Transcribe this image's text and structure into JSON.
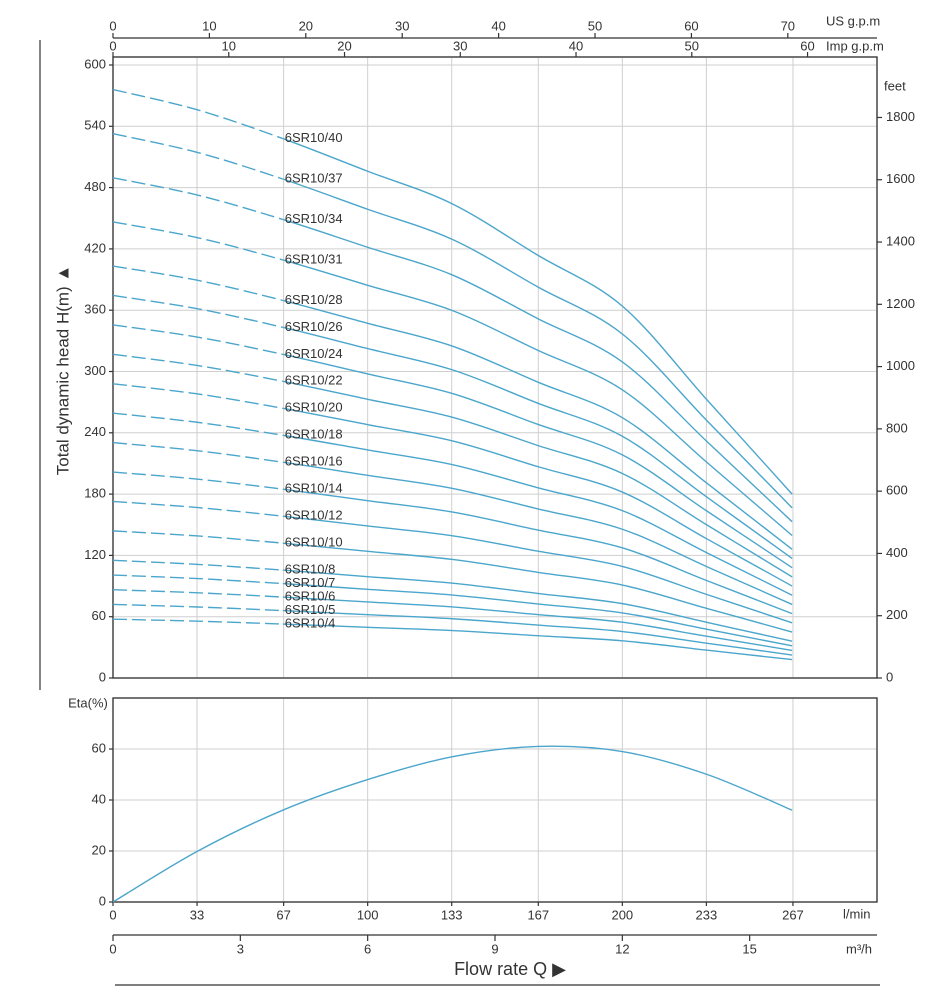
{
  "chart_data": [
    {
      "type": "line",
      "ylabel": "Total dynamic head H(m) ▲",
      "x": [
        0,
        2,
        4,
        6,
        8,
        10,
        12,
        14,
        16
      ],
      "xlim": [
        0,
        18
      ],
      "ylim": [
        0,
        600
      ],
      "yticks": [
        0,
        60,
        120,
        180,
        240,
        300,
        360,
        420,
        480,
        540,
        600
      ],
      "y2label": "feet",
      "y2lim": [
        0,
        1968.5
      ],
      "y2ticks": [
        0,
        200,
        400,
        600,
        800,
        1000,
        1200,
        1400,
        1600,
        1800
      ],
      "top_axes": [
        {
          "label": "US g.p.m",
          "xlim": [
            0,
            79.25
          ],
          "xticks": [
            0,
            10,
            20,
            30,
            40,
            50,
            60,
            70
          ]
        },
        {
          "label": "Imp g.p.m",
          "xlim": [
            0,
            66
          ],
          "xticks": [
            0,
            10,
            20,
            30,
            40,
            50,
            60
          ]
        }
      ],
      "dashed_xrange": [
        0,
        4
      ],
      "color": "#4ba6cc",
      "grid": true,
      "series": [
        {
          "name": "6SR10/40",
          "values": [
            576,
            556,
            528,
            496,
            464,
            414,
            364,
            272,
            180
          ]
        },
        {
          "name": "6SR10/37",
          "values": [
            532.8,
            514.3,
            488.4,
            458.8,
            429.2,
            383,
            336.7,
            251.6,
            166.5
          ]
        },
        {
          "name": "6SR10/34",
          "values": [
            489.6,
            472.6,
            448.8,
            421.6,
            394.4,
            351.9,
            309.4,
            231.2,
            153
          ]
        },
        {
          "name": "6SR10/31",
          "values": [
            446.4,
            430.9,
            409.2,
            384.4,
            359.6,
            320.9,
            282.1,
            210.8,
            139.5
          ]
        },
        {
          "name": "6SR10/28",
          "values": [
            403.2,
            389.2,
            369.6,
            347.2,
            324.8,
            289.8,
            254.8,
            190.4,
            126
          ]
        },
        {
          "name": "6SR10/26",
          "values": [
            374.4,
            361.4,
            343.2,
            322.4,
            301.6,
            269.1,
            236.6,
            176.8,
            117
          ]
        },
        {
          "name": "6SR10/24",
          "values": [
            345.6,
            333.6,
            316.8,
            297.6,
            278.4,
            248.4,
            218.4,
            163.2,
            108
          ]
        },
        {
          "name": "6SR10/22",
          "values": [
            316.8,
            305.8,
            290.4,
            272.8,
            255.2,
            227.7,
            200.2,
            149.6,
            99
          ]
        },
        {
          "name": "6SR10/20",
          "values": [
            288,
            278,
            264,
            248,
            232,
            207,
            182,
            136,
            90
          ]
        },
        {
          "name": "6SR10/18",
          "values": [
            259.2,
            250.2,
            237.6,
            223.2,
            208.8,
            186.3,
            163.8,
            122.4,
            81
          ]
        },
        {
          "name": "6SR10/16",
          "values": [
            230.4,
            222.4,
            211.2,
            198.4,
            185.6,
            165.6,
            145.6,
            108.8,
            72
          ]
        },
        {
          "name": "6SR10/14",
          "values": [
            201.6,
            194.6,
            184.8,
            173.6,
            162.4,
            144.9,
            127.4,
            95.2,
            63
          ]
        },
        {
          "name": "6SR10/12",
          "values": [
            172.8,
            166.8,
            158.4,
            148.8,
            139.2,
            124.2,
            109.2,
            81.6,
            54
          ]
        },
        {
          "name": "6SR10/10",
          "values": [
            144,
            139,
            132,
            124,
            116,
            103.5,
            91,
            68,
            45
          ]
        },
        {
          "name": "6SR10/8",
          "values": [
            115.2,
            111.2,
            105.6,
            99.2,
            92.8,
            82.8,
            72.8,
            54.4,
            36
          ]
        },
        {
          "name": "6SR10/7",
          "values": [
            100.8,
            97.3,
            92.4,
            86.8,
            81.2,
            72.5,
            63.7,
            47.6,
            31.5
          ]
        },
        {
          "name": "6SR10/6",
          "values": [
            86.4,
            83.4,
            79.2,
            74.4,
            69.6,
            62.1,
            54.6,
            40.8,
            27
          ]
        },
        {
          "name": "6SR10/5",
          "values": [
            72,
            69.5,
            66,
            62,
            58,
            51.8,
            45.5,
            34,
            22.5
          ]
        },
        {
          "name": "6SR10/4",
          "values": [
            57.6,
            55.6,
            52.8,
            49.6,
            46.4,
            41.4,
            36.4,
            27.2,
            18
          ]
        }
      ]
    },
    {
      "type": "line",
      "ylabel": "Eta(%)",
      "x": [
        0,
        2,
        4,
        6,
        8,
        10,
        12,
        14,
        16
      ],
      "values": [
        0,
        20,
        36,
        48,
        57,
        61,
        59,
        50,
        36
      ],
      "color": "#4ba6cc",
      "xlim": [
        0,
        18
      ],
      "xticks": [
        0,
        3,
        6,
        9,
        12,
        15
      ],
      "xunit": "m³/h",
      "ylim": [
        0,
        80
      ],
      "yticks": [
        0,
        20,
        40,
        60
      ],
      "lmin_axis": {
        "label": "l/min",
        "xlim": [
          0,
          300
        ],
        "xticks": [
          0,
          33,
          67,
          100,
          133,
          167,
          200,
          233,
          267
        ]
      },
      "xlabel": "Flow rate Q ▶",
      "grid": true
    }
  ]
}
